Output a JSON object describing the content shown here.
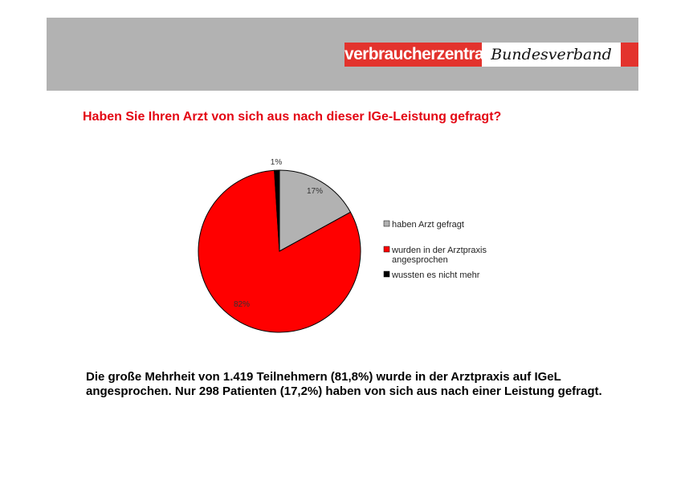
{
  "header": {
    "logo_left": "verbraucherzentrale",
    "logo_right": "Bundesverband",
    "band_color": "#b2b2b2",
    "brand_color": "#e3332d"
  },
  "title": "Haben Sie Ihren Arzt von sich aus nach dieser IGe-Leistung gefragt?",
  "chart_data": {
    "type": "pie",
    "start": "top",
    "direction": "clockwise",
    "legend_position": "right",
    "slices": [
      {
        "name": "haben Arzt gefragt",
        "value": 17,
        "label": "17%",
        "color": "#b2b2b2"
      },
      {
        "name": "wurden in der Arztpraxis angesprochen",
        "value": 82,
        "label": "82%",
        "color": "#ff0000"
      },
      {
        "name": "wussten es nicht mehr",
        "value": 1,
        "label": "1%",
        "color": "#000000"
      }
    ],
    "legend": [
      {
        "lines": [
          "haben Arzt gefragt"
        ]
      },
      {
        "lines": [
          "wurden in der Arztpraxis",
          "angesprochen"
        ]
      },
      {
        "lines": [
          "wussten es nicht mehr"
        ]
      }
    ]
  },
  "summary": "Die große Mehrheit von 1.419 Teilnehmern (81,8%) wurde in der Arztpraxis auf IGeL angesprochen. Nur 298 Patienten (17,2%) haben von sich aus nach einer Leistung gefragt."
}
